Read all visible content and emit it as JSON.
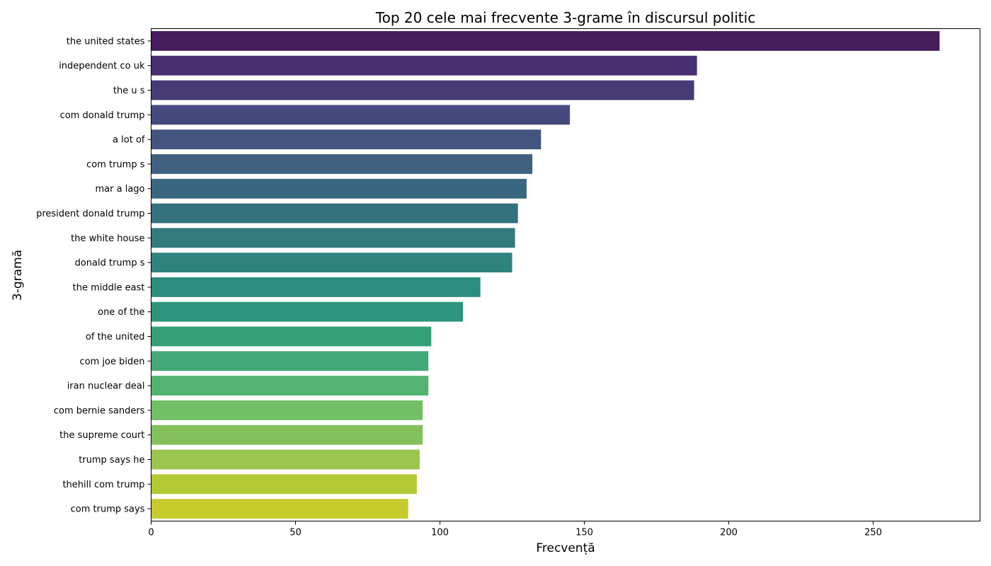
{
  "chart_data": {
    "type": "bar",
    "orientation": "horizontal",
    "title": "Top 20 cele mai frecvente 3-grame în discursul politic",
    "xlabel": "Frecvență",
    "ylabel": "3-gramă",
    "xlim": [
      0,
      287
    ],
    "xticks": [
      0,
      50,
      100,
      150,
      200,
      250
    ],
    "grid": false,
    "legend": "none",
    "colormap": "viridis",
    "categories": [
      "the united states",
      "independent co uk",
      "the u s",
      "com donald trump",
      "a lot of",
      "com trump s",
      "mar a lago",
      "president donald trump",
      "the white house",
      "donald trump s",
      "the middle east",
      "one of the",
      "of the united",
      "com joe biden",
      "iran nuclear deal",
      "com bernie sanders",
      "the supreme court",
      "trump says he",
      "thehill com trump",
      "com trump says"
    ],
    "values": [
      273,
      189,
      188,
      145,
      135,
      132,
      130,
      127,
      126,
      125,
      114,
      108,
      97,
      96,
      96,
      94,
      94,
      93,
      92,
      89
    ],
    "colors": [
      "#451c5c",
      "#482f70",
      "#473b76",
      "#454a7e",
      "#43557f",
      "#3f617f",
      "#39677f",
      "#35717f",
      "#327a7e",
      "#2f837e",
      "#2c8c7d",
      "#2d957c",
      "#35a078",
      "#44a776",
      "#52b470",
      "#72bf66",
      "#82c15b",
      "#9bc64e",
      "#b3ca35",
      "#c8cb2e"
    ]
  }
}
